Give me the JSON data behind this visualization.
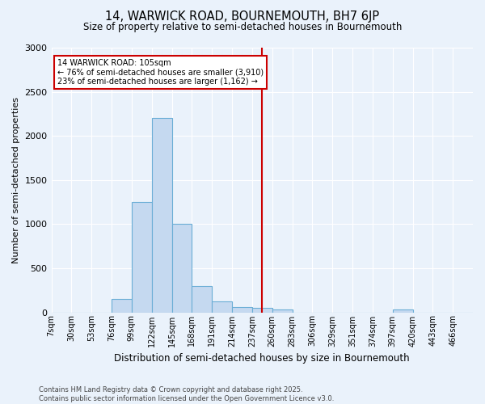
{
  "title_line1": "14, WARWICK ROAD, BOURNEMOUTH, BH7 6JP",
  "title_line2": "Size of property relative to semi-detached houses in Bournemouth",
  "xlabel": "Distribution of semi-detached houses by size in Bournemouth",
  "ylabel": "Number of semi-detached properties",
  "bin_labels": [
    "7sqm",
    "30sqm",
    "53sqm",
    "76sqm",
    "99sqm",
    "122sqm",
    "145sqm",
    "168sqm",
    "191sqm",
    "214sqm",
    "237sqm",
    "260sqm",
    "283sqm",
    "306sqm",
    "329sqm",
    "351sqm",
    "374sqm",
    "397sqm",
    "420sqm",
    "443sqm",
    "466sqm"
  ],
  "bar_heights": [
    0,
    0,
    0,
    150,
    1250,
    2200,
    1000,
    300,
    120,
    60,
    50,
    30,
    0,
    0,
    0,
    0,
    0,
    30,
    0,
    0,
    0
  ],
  "bar_color": "#c5d9f0",
  "bar_edge_color": "#6baed6",
  "red_line_x": 10.5,
  "red_line_color": "#cc0000",
  "annotation_text": "14 WARWICK ROAD: 105sqm\n← 76% of semi-detached houses are smaller (3,910)\n23% of semi-detached houses are larger (1,162) →",
  "annotation_box_color": "#ffffff",
  "annotation_box_edge": "#cc0000",
  "ylim": [
    0,
    3000
  ],
  "yticks": [
    0,
    500,
    1000,
    1500,
    2000,
    2500,
    3000
  ],
  "footer": "Contains HM Land Registry data © Crown copyright and database right 2025.\nContains public sector information licensed under the Open Government Licence v3.0.",
  "background_color": "#eaf2fb",
  "plot_bg_color": "#eaf2fb"
}
